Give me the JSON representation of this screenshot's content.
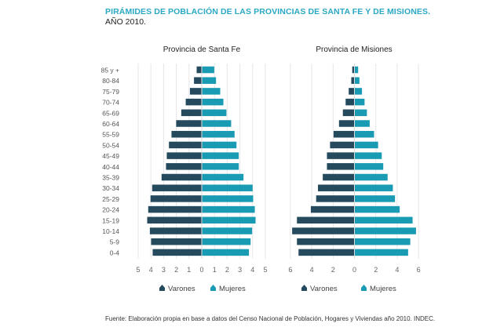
{
  "title": "PIRÁMIDES DE POBLACIÓN DE LAS PROVINCIAS DE SANTA FE Y DE MISIONES.",
  "subtitle": "AÑO 2010.",
  "source": "Fuente: Elaboración propia en base a datos del Censo Nacional de Población, Hogares y Viviendas año 2010. INDEC.",
  "colors": {
    "varones": "#254a5e",
    "mujeres": "#1a9bb4",
    "title": "#2aa8c4"
  },
  "chart_data": [
    {
      "type": "bar",
      "orientation": "horizontal-pyramid",
      "title": "Provincia de Santa Fe",
      "categories": [
        "85 y +",
        "80-84",
        "75-79",
        "70-74",
        "65-69",
        "60-64",
        "55-59",
        "50-54",
        "45-49",
        "40-44",
        "35-39",
        "30-34",
        "25-29",
        "20-24",
        "15-19",
        "10-14",
        "5-9",
        "0-4"
      ],
      "series": [
        {
          "name": "Varones",
          "values": [
            0.37,
            0.58,
            0.9,
            1.23,
            1.58,
            1.98,
            2.35,
            2.55,
            2.72,
            2.78,
            3.13,
            3.87,
            4.0,
            4.18,
            4.26,
            4.05,
            3.95,
            3.83
          ]
        },
        {
          "name": "Mujeres",
          "values": [
            0.95,
            1.09,
            1.42,
            1.67,
            1.91,
            2.28,
            2.55,
            2.7,
            2.88,
            2.88,
            3.25,
            3.97,
            4.01,
            4.14,
            4.2,
            3.93,
            3.81,
            3.68
          ]
        }
      ],
      "xlim": [
        -5,
        5
      ],
      "xticks": [
        "5",
        "4",
        "3",
        "2",
        "1",
        "0",
        "1",
        "2",
        "3",
        "4",
        "5"
      ],
      "grid": true,
      "legend": "bottom"
    },
    {
      "type": "bar",
      "orientation": "horizontal-pyramid",
      "title": "Provincia de Misiones",
      "categories": [
        "85 y +",
        "80-84",
        "75-79",
        "70-74",
        "65-69",
        "60-64",
        "55-59",
        "50-54",
        "45-49",
        "40-44",
        "35-39",
        "30-34",
        "25-29",
        "20-24",
        "15-19",
        "10-14",
        "5-9",
        "0-4"
      ],
      "series": [
        {
          "name": "Varones",
          "values": [
            0.17,
            0.26,
            0.5,
            0.79,
            1.05,
            1.41,
            1.92,
            2.25,
            2.54,
            2.54,
            2.93,
            3.38,
            3.55,
            4.05,
            5.35,
            5.8,
            5.35,
            5.2
          ]
        },
        {
          "name": "Mujeres",
          "values": [
            0.31,
            0.43,
            0.67,
            0.91,
            1.13,
            1.39,
            1.8,
            2.18,
            2.52,
            2.66,
            3.07,
            3.56,
            3.76,
            4.2,
            5.41,
            5.73,
            5.19,
            4.99
          ]
        }
      ],
      "xlim": [
        -6,
        6
      ],
      "xticks": [
        "6",
        "4",
        "2",
        "0",
        "2",
        "4",
        "6"
      ],
      "grid": true,
      "legend": "bottom"
    }
  ]
}
